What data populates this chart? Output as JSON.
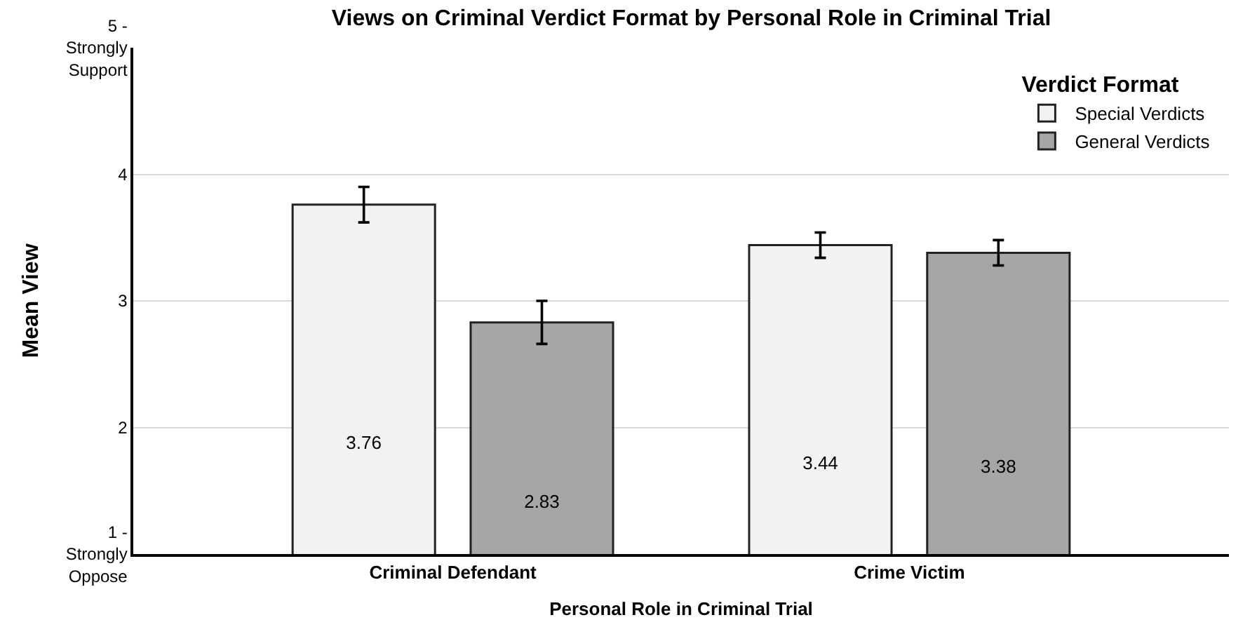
{
  "chart_data": {
    "type": "bar",
    "title": "Views on Criminal Verdict Format by Personal Role in Criminal Trial",
    "xlabel": "Personal Role in Criminal Trial",
    "ylabel": "Mean View",
    "legend_title": "Verdict Format",
    "categories": [
      "Criminal Defendant",
      "Crime Victim"
    ],
    "series": [
      {
        "name": "Special Verdicts",
        "color": "#f2f2f2",
        "values": [
          3.76,
          3.44
        ],
        "errors": [
          0.14,
          0.1
        ]
      },
      {
        "name": "General Verdicts",
        "color": "#a6a6a6",
        "values": [
          2.83,
          3.38
        ],
        "errors": [
          0.17,
          0.1
        ]
      }
    ],
    "ylim": [
      1,
      5
    ],
    "yticks": [
      {
        "value": 1,
        "label": "1 -\nStrongly\nOppose"
      },
      2,
      3,
      4,
      {
        "value": 5,
        "label": "5 -\nStrongly\nSupport"
      }
    ],
    "grid": "y",
    "legend": "top right",
    "data_labels": true
  }
}
